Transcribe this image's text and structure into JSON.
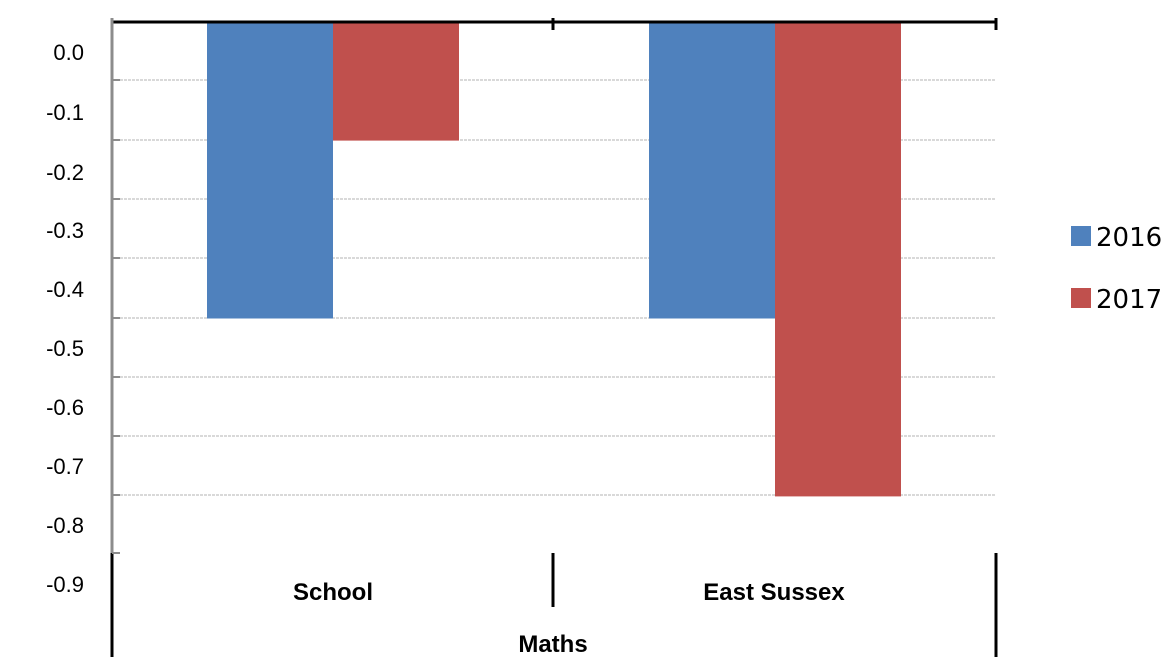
{
  "chart_data": {
    "type": "bar",
    "group_label": "Maths",
    "categories": [
      "School",
      "East Sussex"
    ],
    "series": [
      {
        "name": "2016",
        "values": [
          -0.5,
          -0.5
        ],
        "color": "#4f81bd"
      },
      {
        "name": "2017",
        "values": [
          -0.2,
          -0.8
        ],
        "color": "#c0504d"
      }
    ],
    "y_ticks": [
      "0.0",
      "-0.1",
      "-0.2",
      "-0.3",
      "-0.4",
      "-0.5",
      "-0.6",
      "-0.7",
      "-0.8",
      "-0.9"
    ],
    "ylim": [
      -0.9,
      0.0
    ],
    "grid": true,
    "legend_position": "right"
  }
}
